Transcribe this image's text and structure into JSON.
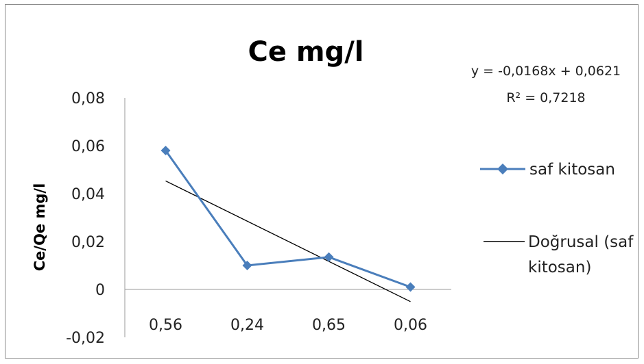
{
  "chart_data": {
    "type": "line",
    "title": "Ce mg/l",
    "xlabel": "",
    "ylabel": "Ce/Qe  mg/l",
    "categories": [
      "0,56",
      "0,24",
      "0,65",
      "0,06"
    ],
    "ylim": [
      -0.02,
      0.08
    ],
    "yticks": [
      -0.02,
      0,
      0.02,
      0.04,
      0.06,
      0.08
    ],
    "ytick_labels": [
      "-0,02",
      "0",
      "0,02",
      "0,04",
      "0,06",
      "0,08"
    ],
    "grid": false,
    "legend_position": "right",
    "series": [
      {
        "name": "saf kitosan",
        "values": [
          0.058,
          0.01,
          0.0135,
          0.001
        ],
        "color": "#4A7EBB",
        "marker": "diamond"
      }
    ],
    "trendline": {
      "name": "Doğrusal (saf kitosan)",
      "legend_lines": [
        "Doğrusal (saf",
        "kitosan)"
      ],
      "slope": -0.0168,
      "intercept": 0.0621,
      "color": "#000000",
      "equation": "y = -0,0168x + 0,0621",
      "r2": "R² = 0,7218"
    }
  }
}
